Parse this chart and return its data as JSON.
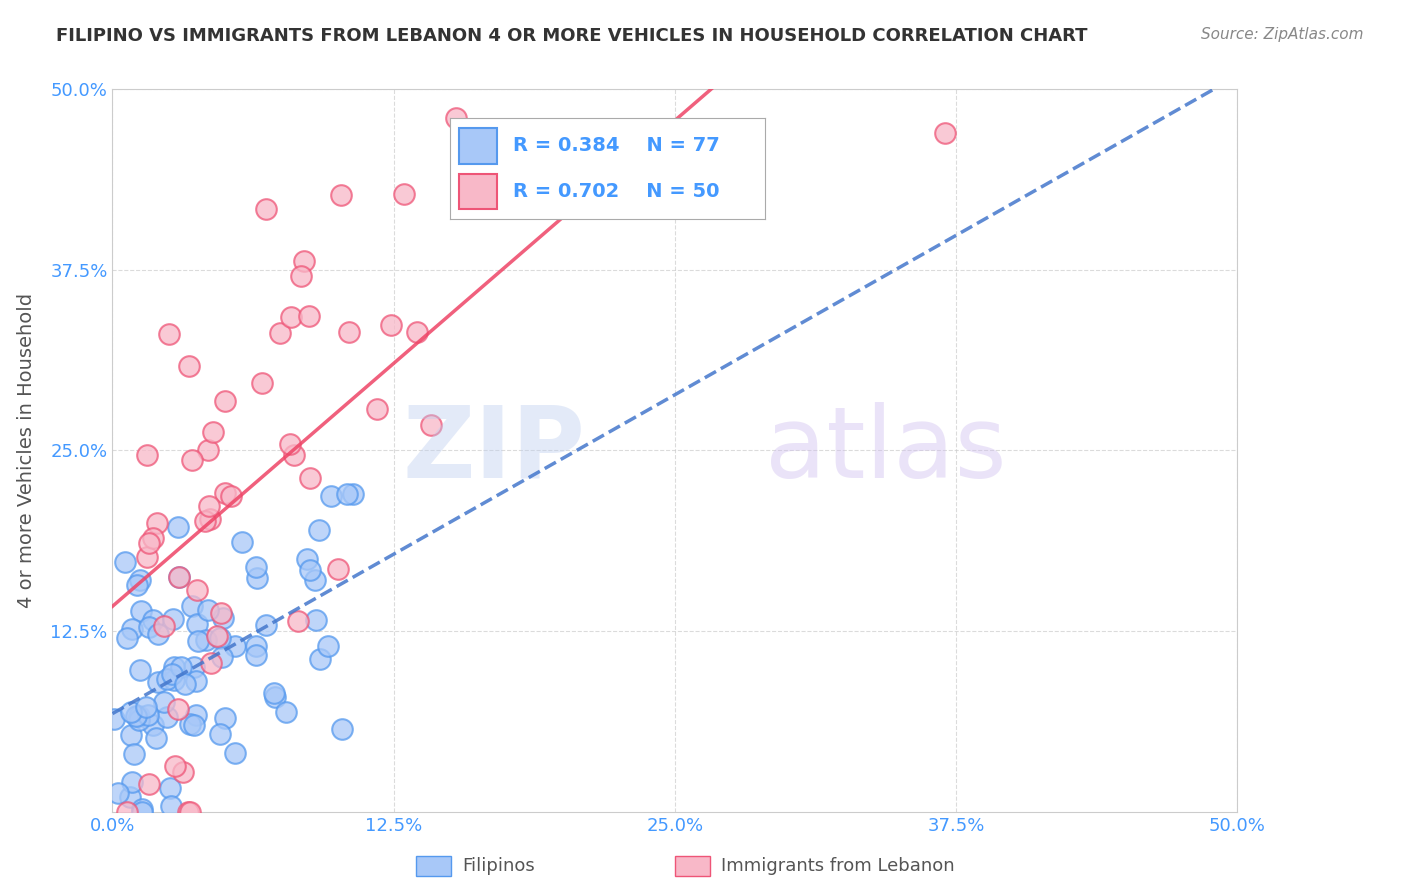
{
  "title": "FILIPINO VS IMMIGRANTS FROM LEBANON 4 OR MORE VEHICLES IN HOUSEHOLD CORRELATION CHART",
  "source": "Source: ZipAtlas.com",
  "xlabel": "",
  "ylabel": "4 or more Vehicles in Household",
  "xlim": [
    0.0,
    0.5
  ],
  "ylim": [
    0.0,
    0.5
  ],
  "xtick_labels": [
    "0.0%",
    "12.5%",
    "25.0%",
    "37.5%",
    "50.0%"
  ],
  "xtick_vals": [
    0.0,
    0.125,
    0.25,
    0.375,
    0.5
  ],
  "ytick_labels": [
    "12.5%",
    "25.0%",
    "37.5%",
    "50.0%"
  ],
  "ytick_vals": [
    0.125,
    0.25,
    0.375,
    0.5
  ],
  "filipino_color": "#a8c8f8",
  "filipino_edge_color": "#5599ee",
  "lebanon_color": "#f8b8c8",
  "lebanon_edge_color": "#ee5577",
  "r_filipino": 0.384,
  "n_filipino": 77,
  "r_lebanon": 0.702,
  "n_lebanon": 50,
  "legend_label_filipino": "Filipinos",
  "legend_label_lebanon": "Immigrants from Lebanon",
  "line_color_filipino": "#4477cc",
  "line_color_lebanon": "#ee4466",
  "background_color": "#ffffff",
  "grid_color": "#cccccc",
  "title_color": "#333333",
  "source_color": "#888888",
  "axis_label_color": "#555555",
  "tick_label_color": "#4499ff",
  "watermark_color_primary": "#bbccee",
  "watermark_color_secondary": "#ccbbee"
}
